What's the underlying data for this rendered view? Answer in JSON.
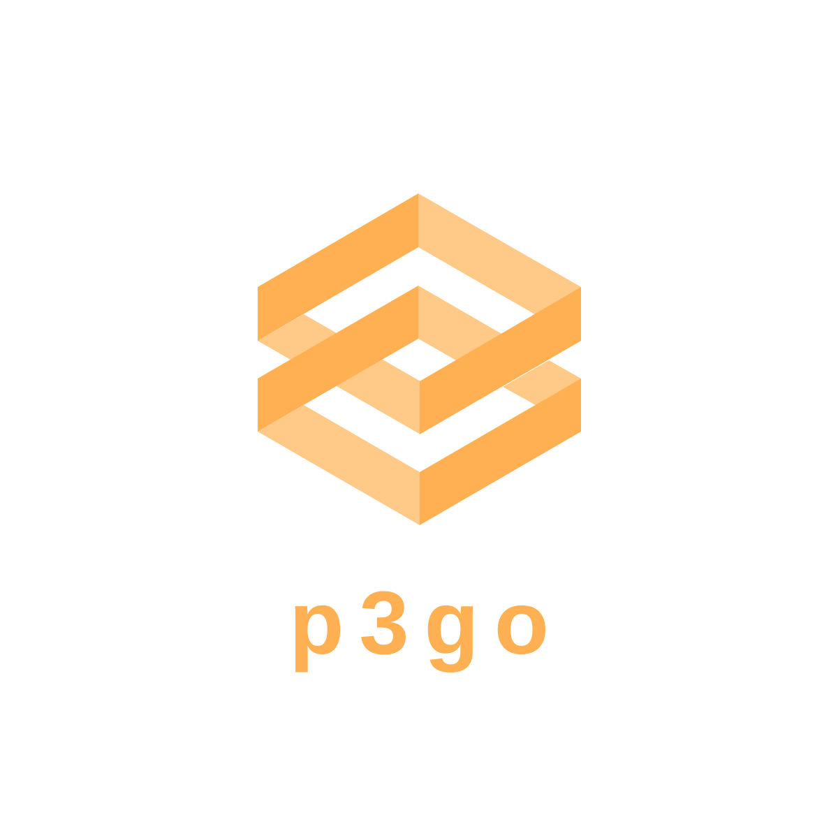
{
  "brand": {
    "wordmark": "p3go"
  },
  "colors": {
    "background": "#ffffff",
    "face_dark": "#ffb052",
    "face_light": "#ffc987",
    "text": "#ffb052"
  },
  "icons": {
    "logo": "isometric-interlocking-s-mark-icon"
  }
}
